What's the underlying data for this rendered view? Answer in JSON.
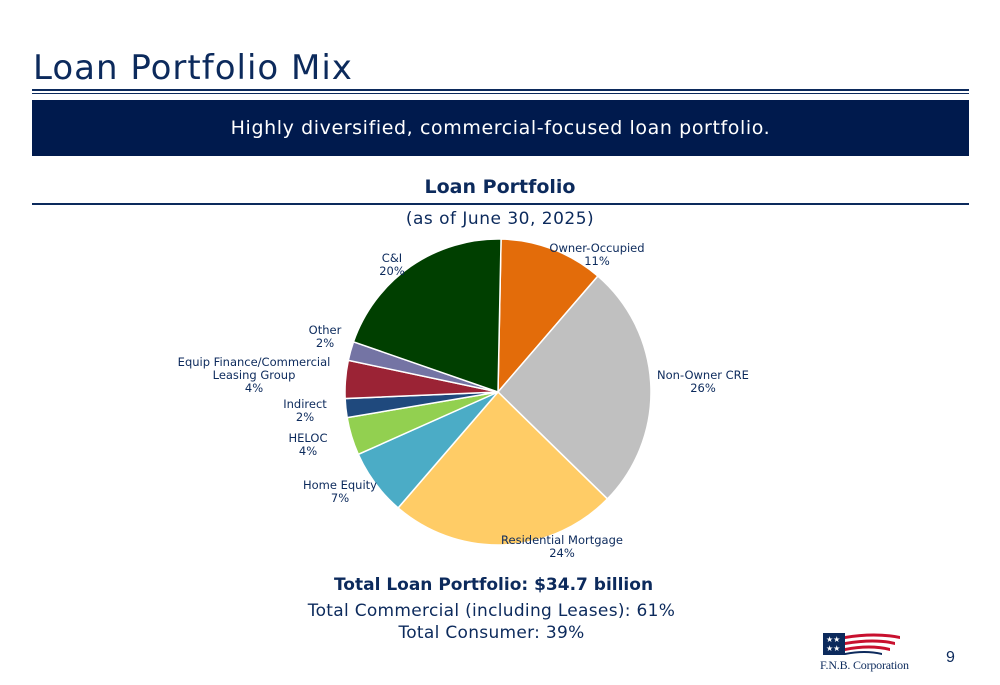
{
  "slide": {
    "title": "Loan Portfolio Mix",
    "banner": "Highly diversified, commercial-focused loan portfolio.",
    "page_number": "9"
  },
  "logo": {
    "text": "F.N.B. Corporation"
  },
  "chart_data": {
    "type": "pie",
    "title": "Loan Portfolio",
    "subtitle": "(as of June 30, 2025)",
    "slices": [
      {
        "label": "Owner-Occupied",
        "value": 11,
        "color": "#e36c0a"
      },
      {
        "label": "Non-Owner CRE",
        "value": 26,
        "color": "#c0c0c0"
      },
      {
        "label": "Residential Mortgage",
        "value": 24,
        "color": "#ffcc66"
      },
      {
        "label": "Home Equity",
        "value": 7,
        "color": "#4bacc6"
      },
      {
        "label": "HELOC",
        "value": 4,
        "color": "#92d050"
      },
      {
        "label": "Indirect",
        "value": 2,
        "color": "#1f497d"
      },
      {
        "label": "Equip Finance/Commercial Leasing Group",
        "value": 4,
        "color": "#9b2335"
      },
      {
        "label": "Other",
        "value": 2,
        "color": "#7474a4"
      },
      {
        "label": "C&I",
        "value": 20,
        "color": "#003f00"
      }
    ]
  },
  "totals": {
    "portfolio": "Total Loan Portfolio: $34.7 billion",
    "commercial": "Total Commercial (including Leases): 61%",
    "consumer": "Total Consumer: 39%"
  }
}
